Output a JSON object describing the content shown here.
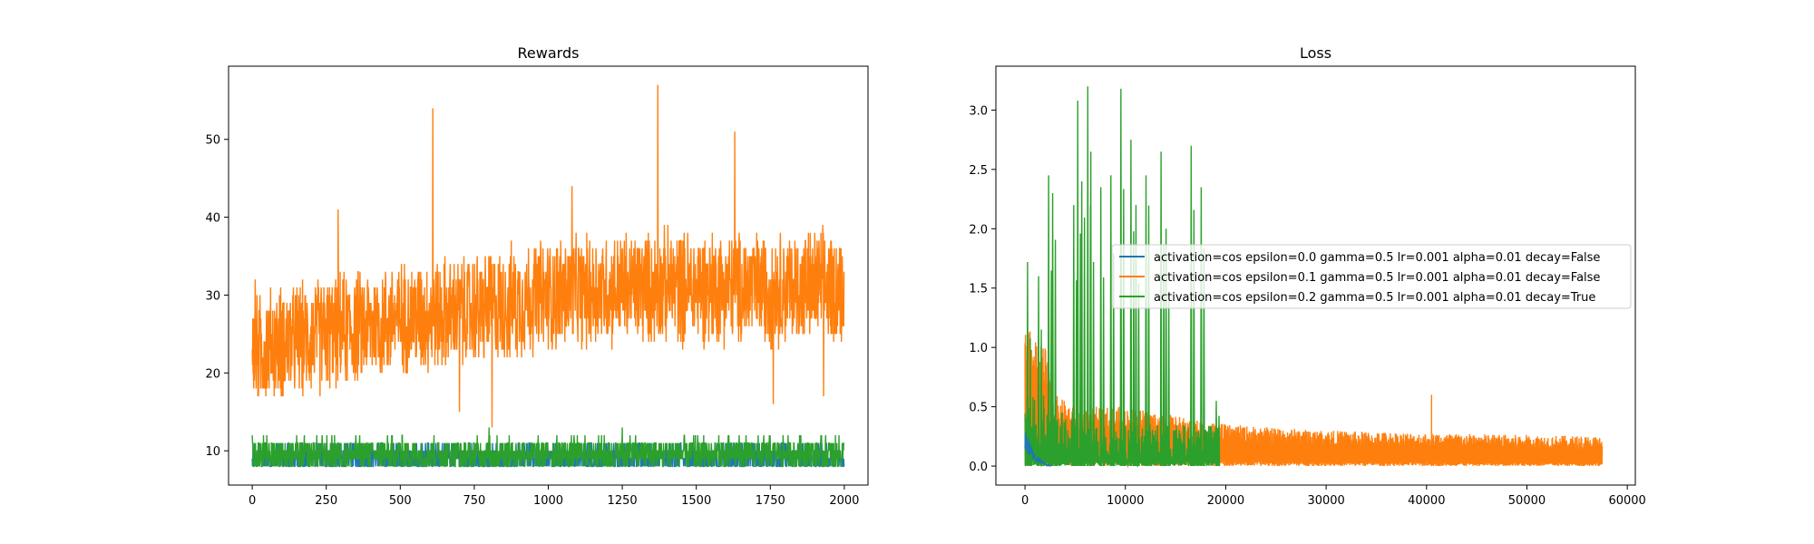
{
  "chart_data": [
    {
      "type": "line",
      "title": "Rewards",
      "xlabel": "",
      "ylabel": "",
      "xlim": [
        -80,
        2080
      ],
      "ylim": [
        5.6,
        59.4
      ],
      "xticks": [
        0,
        250,
        500,
        750,
        1000,
        1250,
        1500,
        1750,
        2000
      ],
      "yticks": [
        10,
        20,
        30,
        40,
        50
      ],
      "grid": false,
      "legend": null,
      "series": [
        {
          "color": "#1f77b4",
          "points": 2000,
          "description_values": {
            "min": 8,
            "max": 11,
            "typical": 9
          },
          "key_points": [
            [
              0,
              9
            ],
            [
              500,
              9
            ],
            [
              1000,
              9
            ],
            [
              1500,
              9
            ],
            [
              2000,
              9
            ]
          ]
        },
        {
          "color": "#ff7f0e",
          "points": 2000,
          "description_values": {
            "min": 13,
            "max": 57
          },
          "trend": [
            [
              0,
              23
            ],
            [
              250,
              25
            ],
            [
              500,
              27
            ],
            [
              750,
              28
            ],
            [
              1000,
              30
            ],
            [
              1250,
              31
            ],
            [
              1500,
              31
            ],
            [
              1750,
              31
            ],
            [
              2000,
              31
            ]
          ],
          "peaks": [
            [
              10,
              32
            ],
            [
              290,
              41
            ],
            [
              610,
              54
            ],
            [
              700,
              15
            ],
            [
              810,
              13
            ],
            [
              1080,
              44
            ],
            [
              1370,
              57
            ],
            [
              1630,
              51
            ],
            [
              1760,
              16
            ],
            [
              1930,
              17
            ]
          ]
        },
        {
          "color": "#2ca02c",
          "points": 2000,
          "description_values": {
            "min": 8,
            "max": 13,
            "typical": 10
          },
          "peaks": [
            [
              0,
              12
            ],
            [
              800,
              13
            ],
            [
              1250,
              13
            ]
          ]
        }
      ]
    },
    {
      "type": "line",
      "title": "Loss",
      "xlabel": "",
      "ylabel": "",
      "xlim": [
        -2900,
        60800
      ],
      "ylim": [
        -0.16,
        3.37
      ],
      "xticks": [
        0,
        10000,
        20000,
        30000,
        40000,
        50000,
        60000
      ],
      "yticks": [
        0.0,
        0.5,
        1.0,
        1.5,
        2.0,
        2.5,
        3.0
      ],
      "grid": false,
      "legend_position": "center-right",
      "series": [
        {
          "name": "activation=cos epsilon=0.0 gamma=0.5 lr=0.001 alpha=0.01 decay=False",
          "color": "#1f77b4",
          "x_end": 2600,
          "key_points": [
            [
              0,
              0.25
            ],
            [
              500,
              0.15
            ],
            [
              1000,
              0.08
            ],
            [
              2000,
              0.02
            ],
            [
              2600,
              0.0
            ]
          ]
        },
        {
          "name": "activation=cos epsilon=0.1 gamma=0.5 lr=0.001 alpha=0.01 decay=False",
          "color": "#ff7f0e",
          "x_end": 57500,
          "envelope_max": [
            [
              0,
              1.2
            ],
            [
              2000,
              1.0
            ],
            [
              3000,
              0.6
            ],
            [
              5000,
              0.5
            ],
            [
              10000,
              0.5
            ],
            [
              20000,
              0.35
            ],
            [
              30000,
              0.3
            ],
            [
              40000,
              0.28
            ],
            [
              57500,
              0.25
            ]
          ],
          "peaks": [
            [
              40500,
              0.6
            ]
          ]
        },
        {
          "name": "activation=cos epsilon=0.2 gamma=0.5 lr=0.001 alpha=0.01 decay=True",
          "color": "#2ca02c",
          "x_end": 19200,
          "peaks": [
            [
              200,
              1.72
            ],
            [
              1300,
              1.6
            ],
            [
              2300,
              2.45
            ],
            [
              2700,
              2.3
            ],
            [
              4800,
              2.2
            ],
            [
              5200,
              3.08
            ],
            [
              5600,
              2.4
            ],
            [
              6200,
              3.2
            ],
            [
              6500,
              2.65
            ],
            [
              7500,
              2.35
            ],
            [
              8500,
              2.45
            ],
            [
              9500,
              3.18
            ],
            [
              10500,
              2.75
            ],
            [
              11000,
              2.2
            ],
            [
              12000,
              2.45
            ],
            [
              13500,
              2.65
            ],
            [
              14000,
              2.0
            ],
            [
              16500,
              2.7
            ],
            [
              17500,
              2.35
            ],
            [
              19000,
              0.55
            ]
          ]
        }
      ]
    }
  ]
}
